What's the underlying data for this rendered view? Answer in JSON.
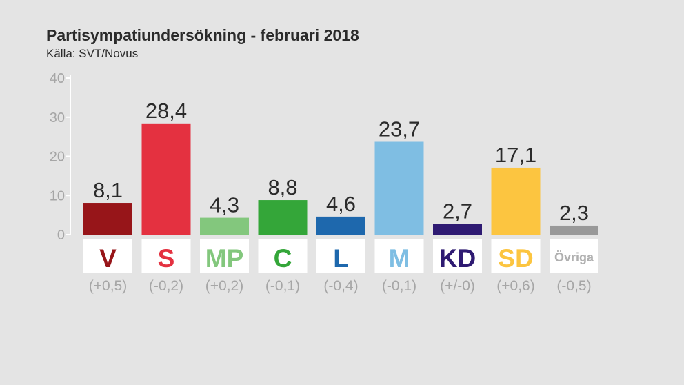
{
  "chart_data": {
    "type": "bar",
    "title": "Partisympatiundersökning - februari 2018",
    "subtitle": "Källa: SVT/Novus",
    "xlabel": "",
    "ylabel": "",
    "ylim": [
      0,
      40
    ],
    "yticks": [
      0,
      10,
      20,
      30,
      40
    ],
    "grid": false,
    "categories": [
      "V",
      "S",
      "MP",
      "C",
      "L",
      "M",
      "KD",
      "SD",
      "Övriga"
    ],
    "values": [
      8.1,
      28.4,
      4.3,
      8.8,
      4.6,
      23.7,
      2.7,
      17.1,
      2.3
    ],
    "value_labels": [
      "8,1",
      "28,4",
      "4,3",
      "8,8",
      "4,6",
      "23,7",
      "2,7",
      "17,1",
      "2,3"
    ],
    "changes": [
      "(+0,5)",
      "(-0,2)",
      "(+0,2)",
      "(-0,1)",
      "(-0,4)",
      "(-0,1)",
      "(+/-0)",
      "(+0,6)",
      "(-0,5)"
    ],
    "colors": [
      "#971519",
      "#e43140",
      "#83c77d",
      "#34a639",
      "#1e68ad",
      "#7fbee3",
      "#2e1a72",
      "#fcc540",
      "#999999"
    ],
    "label_colors": [
      "#971519",
      "#e43140",
      "#83c77d",
      "#34a639",
      "#1e68ad",
      "#7fbee3",
      "#2e1a72",
      "#fcc540",
      "#b0b0b0"
    ]
  }
}
